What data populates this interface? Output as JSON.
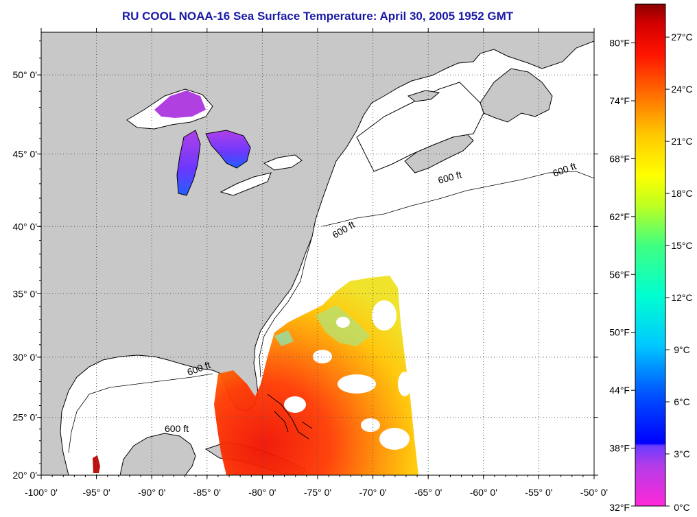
{
  "title": "RU COOL  NOAA-16  Sea Surface Temperature:  April 30, 2005 1952 GMT",
  "map": {
    "lon_labels": [
      "-100° 0'",
      "-95° 0'",
      "-90° 0'",
      "-85° 0'",
      "-80° 0'",
      "-75° 0'",
      "-70° 0'",
      "-65° 0'",
      "-60° 0'",
      "-55° 0'",
      "-50° 0'"
    ],
    "lon_values": [
      -100,
      -95,
      -90,
      -85,
      -80,
      -75,
      -70,
      -65,
      -60,
      -55,
      -50
    ],
    "lat_labels": [
      "20° 0'",
      "25° 0'",
      "30° 0'",
      "35° 0'",
      "40° 0'",
      "45° 0'",
      "50° 0'"
    ],
    "lat_values": [
      20,
      25,
      30,
      35,
      40,
      45,
      50
    ],
    "lon_range": [
      -100,
      -50
    ],
    "lat_range": [
      20,
      52.5
    ],
    "grid": true,
    "isobath_label": "600 ft",
    "colors": {
      "land": "#c8c8c8",
      "ocean": "#ffffff",
      "grid": "#555555",
      "coast": "#000000"
    }
  },
  "colorbar": {
    "fahrenheit_labels": [
      "80°F",
      "74°F",
      "68°F",
      "62°F",
      "56°F",
      "50°F",
      "44°F",
      "38°F",
      "32°F"
    ],
    "fahrenheit_values": [
      80,
      74,
      68,
      62,
      56,
      50,
      44,
      38,
      32
    ],
    "celsius_labels": [
      "27°C",
      "24°C",
      "21°C",
      "18°C",
      "15°C",
      "12°C",
      "9°C",
      "6°C",
      "3°C",
      "0°C"
    ],
    "celsius_values": [
      27,
      24,
      21,
      18,
      15,
      12,
      9,
      6,
      3,
      0
    ],
    "range_c": [
      0,
      28.9
    ]
  }
}
